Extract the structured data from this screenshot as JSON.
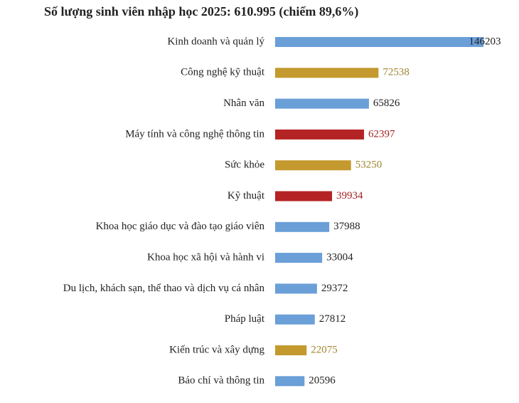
{
  "chart_data": {
    "type": "bar",
    "orientation": "horizontal",
    "title": "Số lượng sinh viên nhập học 2025: 610.995 (chiếm 89,6%)",
    "categories": [
      "Kinh doanh và quản lý",
      "Công nghệ kỹ thuật",
      "Nhân văn",
      "Máy tính và công nghệ thông tin",
      "Sức khỏe",
      "Kỹ thuật",
      "Khoa học giáo dục và đào tạo giáo viên",
      "Khoa học xã hội và hành vi",
      "Du lịch, khách sạn, thể thao và dịch vụ cá nhân",
      "Pháp luật",
      "Kiến trúc và xây dựng",
      "Báo chí và thông tin"
    ],
    "values": [
      146203,
      72538,
      65826,
      62397,
      53250,
      39934,
      37988,
      33004,
      29372,
      27812,
      22075,
      20596
    ],
    "colors": [
      "#6a9fd8",
      "#c49a2e",
      "#6a9fd8",
      "#b52424",
      "#c49a2e",
      "#b52424",
      "#6a9fd8",
      "#6a9fd8",
      "#6a9fd8",
      "#6a9fd8",
      "#c49a2e",
      "#6a9fd8"
    ],
    "label_colors": [
      "#222222",
      "#a08530",
      "#222222",
      "#9e1f1f",
      "#a08530",
      "#9e1f1f",
      "#222222",
      "#222222",
      "#222222",
      "#222222",
      "#a08530",
      "#222222"
    ]
  }
}
